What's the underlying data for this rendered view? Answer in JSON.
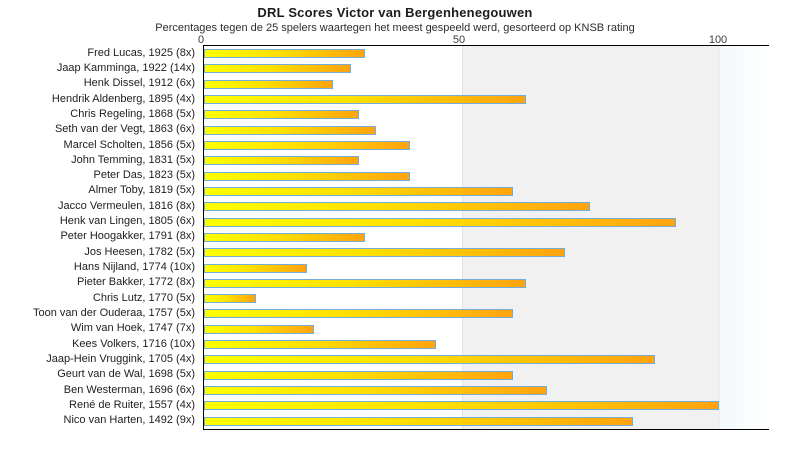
{
  "header": {
    "title": "DRL Scores Victor van Bergenhenegouwen",
    "subtitle": "Percentages tegen de 25 spelers waartegen het meest gespeeld werd, gesorteerd op KNSB rating"
  },
  "x_axis": {
    "ticks": [
      "0",
      "50",
      "100"
    ]
  },
  "chart_data": {
    "type": "bar",
    "orientation": "horizontal",
    "title": "DRL Scores Victor van Bergenhenegouwen",
    "subtitle": "Percentages tegen de 25 spelers waartegen het meest gespeeld werd, gesorteerd op KNSB rating",
    "xlabel": "",
    "ylabel": "",
    "xlim": [
      0,
      109.5
    ],
    "x_ticks": [
      0,
      50,
      100
    ],
    "grid": "vertical lines at 50 and 100, shaded band between 50 and 100",
    "legend": "none",
    "categories": [
      "Fred Lucas, 1925 (8x)",
      "Jaap Kamminga, 1922 (14x)",
      "Henk Dissel, 1912 (6x)",
      "Hendrik Aldenberg, 1895 (4x)",
      "Chris Regeling, 1868 (5x)",
      "Seth van der Vegt, 1863 (6x)",
      "Marcel Scholten, 1856 (5x)",
      "John Temming, 1831 (5x)",
      "Peter Das, 1823 (5x)",
      "Almer Toby, 1819 (5x)",
      "Jacco Vermeulen, 1816 (8x)",
      "Henk van Lingen, 1805 (6x)",
      "Peter Hoogakker, 1791 (8x)",
      "Jos Heesen, 1782 (5x)",
      "Hans Nijland, 1774 (10x)",
      "Pieter Bakker, 1772 (8x)",
      "Chris Lutz, 1770 (5x)",
      "Toon van der Ouderaa, 1757 (5x)",
      "Wim van Hoek, 1747 (7x)",
      "Kees Volkers, 1716 (10x)",
      "Jaap-Hein Vruggink, 1705 (4x)",
      "Geurt van de Wal, 1698 (5x)",
      "Ben Westerman, 1696 (6x)",
      "René de Ruiter, 1557 (4x)",
      "Nico van Harten, 1492 (9x)"
    ],
    "values": [
      31.25,
      28.57,
      25,
      62.5,
      30,
      33.33,
      40,
      30,
      40,
      60,
      75,
      91.67,
      31.25,
      70,
      20,
      62.5,
      10,
      60,
      21.43,
      45,
      87.5,
      60,
      66.67,
      100,
      83.33
    ],
    "colors": {
      "bar_gradient_start": "#ffff00",
      "bar_gradient_end": "#ffa30f",
      "bar_border": "#74acdc",
      "band_50_100": "#f1f1f1",
      "band_over_100": "#f6fafd",
      "plot_border": "#000000",
      "gridline": "#e2e2e2"
    }
  }
}
